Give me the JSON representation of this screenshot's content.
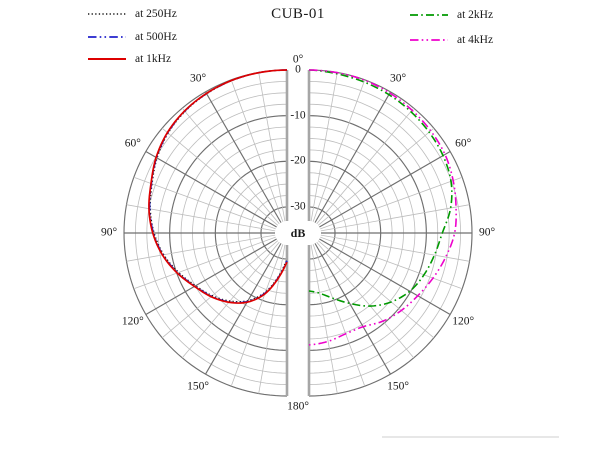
{
  "title": "CUB-01",
  "legend_left": [
    {
      "label": "at 250Hz",
      "color": "#1a1a1a",
      "style": "dotted"
    },
    {
      "label": "at 500Hz",
      "color": "#2222cc",
      "style": "dashdotdot"
    },
    {
      "label": "at 1kHz",
      "color": "#dd0000",
      "style": "solid"
    }
  ],
  "legend_right": [
    {
      "label": "at 2kHz",
      "color": "#009900",
      "style": "dashdot"
    },
    {
      "label": "at 4kHz",
      "color": "#ee00cc",
      "style": "dashdotdot"
    }
  ],
  "chart_data": {
    "type": "polar-directivity",
    "title": "CUB-01",
    "layout": "two half-circle polar plots sharing a central vertical dB axis; left half shows low frequencies, right half shows high frequencies",
    "radial_unit_label": "dB",
    "radial_range_db": [
      0,
      -30
    ],
    "radial_major_ticks": [
      {
        "label": "0",
        "db": 0
      },
      {
        "label": "-10",
        "db": -10
      },
      {
        "label": "-20",
        "db": -20
      },
      {
        "label": "-30",
        "db": -30
      }
    ],
    "radial_minor_step_db": 2.5,
    "angle_step_minor_deg": 10,
    "angle_step_major_deg": 30,
    "angle_tick_labels": {
      "top": "0°",
      "bottom": "180°",
      "sides": [
        {
          "label": "30°",
          "deg": 30
        },
        {
          "label": "60°",
          "deg": 60
        },
        {
          "label": "90°",
          "deg": 90
        },
        {
          "label": "120°",
          "deg": 120
        },
        {
          "label": "150°",
          "deg": 150
        }
      ]
    },
    "angles_deg": [
      0,
      10,
      20,
      30,
      40,
      50,
      60,
      70,
      80,
      90,
      100,
      110,
      120,
      130,
      140,
      150,
      160,
      170,
      180
    ],
    "series": [
      {
        "name": "at 250Hz",
        "side": "left",
        "color": "#1a1a1a",
        "style": "dotted",
        "values_db": [
          0,
          -0.05,
          -0.2,
          -0.5,
          -0.95,
          -1.7,
          -2.85,
          -4.25,
          -5.3,
          -6.6,
          -8.3,
          -10.45,
          -12.6,
          -14.35,
          -16.25,
          -18.6,
          -22.0,
          -26.5,
          -29.9
        ]
      },
      {
        "name": "at 500Hz",
        "side": "left",
        "color": "#2222cc",
        "style": "dashdotdot",
        "values_db": [
          0,
          -0.05,
          -0.17,
          -0.45,
          -0.85,
          -1.6,
          -2.7,
          -4.1,
          -5.15,
          -6.45,
          -8.1,
          -10.25,
          -12.4,
          -14.15,
          -16.0,
          -18.35,
          -21.7,
          -26.2,
          -29.6
        ]
      },
      {
        "name": "at 1kHz",
        "side": "left",
        "color": "#dd0000",
        "style": "solid",
        "values_db": [
          0,
          -0.05,
          -0.15,
          -0.4,
          -0.8,
          -1.5,
          -2.6,
          -4.0,
          -5.0,
          -6.3,
          -8.0,
          -10.1,
          -12.3,
          -14.0,
          -15.9,
          -18.2,
          -21.5,
          -26.0,
          -29.3
        ]
      },
      {
        "name": "at 2kHz",
        "side": "right",
        "color": "#009900",
        "style": "dashdot",
        "values_db": [
          0,
          -0.3,
          -0.5,
          -0.7,
          -1.0,
          -1.35,
          -1.8,
          -2.6,
          -4.2,
          -6.5,
          -7.8,
          -8.9,
          -10.2,
          -12.2,
          -14.8,
          -17.9,
          -20.5,
          -22.3,
          -23.0
        ]
      },
      {
        "name": "at 4kHz",
        "side": "right",
        "color": "#ee00cc",
        "style": "dashdotdot",
        "values_db": [
          0,
          -0.05,
          -0.1,
          -0.3,
          -0.6,
          -0.9,
          -1.3,
          -2.1,
          -3.0,
          -3.8,
          -5.3,
          -6.8,
          -8.2,
          -9.3,
          -10.5,
          -12.0,
          -12.2,
          -11.6,
          -11.2
        ]
      }
    ],
    "grid": {
      "rings_on": true,
      "spokes_on": true,
      "center_hole": true
    }
  }
}
